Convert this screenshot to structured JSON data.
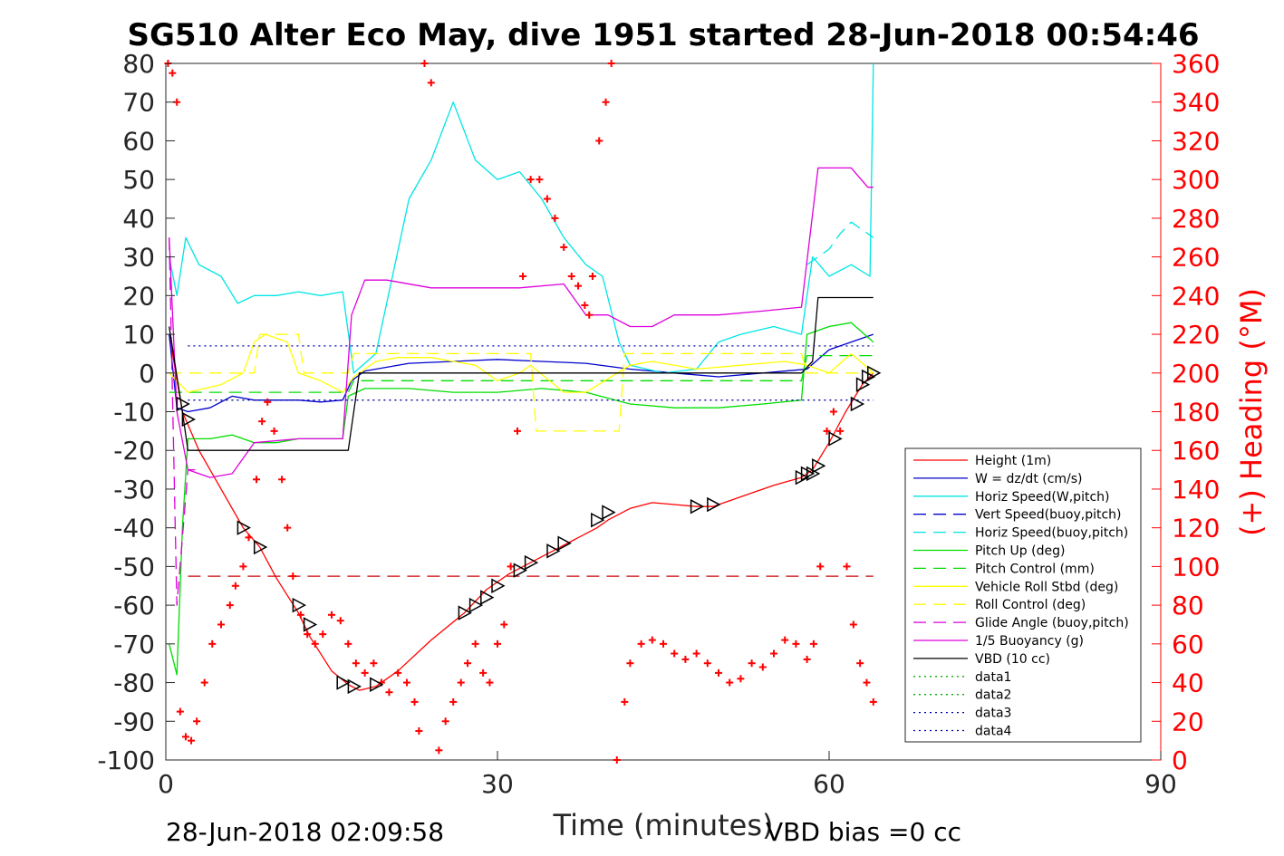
{
  "chart_data": {
    "type": "line",
    "title": "SG510 Alter Eco May, dive 1951 started 28-Jun-2018 00:54:46",
    "xlabel": "Time (minutes)",
    "ylabel_right": "(+) Heading (°M)",
    "xlim": [
      0,
      90
    ],
    "ylim_left": [
      -100,
      80
    ],
    "ylim_right": [
      0,
      360
    ],
    "x_ticks": [
      "0",
      "30",
      "60",
      "90"
    ],
    "y_ticks_left": [
      "80",
      "70",
      "60",
      "50",
      "40",
      "30",
      "20",
      "10",
      "0",
      "-10",
      "-20",
      "-30",
      "-40",
      "-50",
      "-60",
      "-70",
      "-80",
      "-90",
      "-100"
    ],
    "y_ticks_right": [
      "360",
      "340",
      "320",
      "300",
      "280",
      "260",
      "240",
      "220",
      "200",
      "180",
      "160",
      "140",
      "120",
      "100",
      "80",
      "60",
      "40",
      "20",
      "0"
    ],
    "footer_left": "28-Jun-2018 02:09:58",
    "footer_right": "VBD bias =0 cc",
    "legend_position": "lower-right",
    "series": [
      {
        "name": "Height (1m)",
        "color": "#ff0000",
        "style": "solid",
        "x": [
          0.3,
          1.5,
          3,
          5,
          7,
          8.5,
          10,
          12,
          13,
          15,
          16.5,
          17.5,
          19,
          21,
          24,
          27,
          29,
          31,
          33,
          35,
          37,
          39,
          40,
          42,
          44,
          46,
          48,
          49.5,
          52,
          55,
          57.5,
          58.5,
          60,
          61.5,
          63,
          64
        ],
        "y": [
          10,
          -10,
          -20,
          -30,
          -40,
          -45,
          -53,
          -62,
          -68,
          -77,
          -80.5,
          -82,
          -81,
          -77,
          -69,
          -62,
          -56,
          -52,
          -49,
          -46,
          -43,
          -40,
          -38,
          -35,
          -33.5,
          -34,
          -34.5,
          -34.5,
          -32,
          -29,
          -27,
          -25,
          -18,
          -10,
          -3,
          0
        ]
      },
      {
        "name": "W = dz/dt (cm/s)",
        "color": "#0000cc",
        "style": "solid",
        "x": [
          0.3,
          1,
          2,
          4,
          6,
          8,
          10,
          12,
          14,
          16,
          16.8,
          18,
          22,
          26,
          30,
          34,
          38,
          42,
          46,
          50,
          54,
          58,
          60,
          62,
          64
        ],
        "y": [
          10,
          -9,
          -10,
          -9,
          -6,
          -7,
          -7,
          -7,
          -7.5,
          -7,
          -2,
          0.5,
          2.5,
          3,
          3.5,
          3,
          2.5,
          1,
          0,
          -1,
          0,
          1,
          6,
          8,
          10
        ]
      },
      {
        "name": "Horiz Speed(W,pitch)",
        "color": "#00e5e5",
        "style": "solid",
        "x": [
          0.3,
          1,
          1.8,
          3,
          5,
          6.5,
          8,
          10,
          12,
          14,
          16,
          17,
          19,
          20.5,
          22,
          24,
          26,
          28,
          30,
          32,
          34,
          36,
          38,
          39.5,
          41,
          42,
          45,
          48,
          50,
          52,
          55,
          57.5,
          58.5,
          60,
          62,
          63.7,
          64
        ],
        "y": [
          30,
          20,
          35,
          28,
          25,
          18,
          20,
          20,
          21,
          20,
          21,
          0,
          5,
          25,
          45,
          55,
          70,
          55,
          50,
          52,
          45,
          35,
          28,
          25,
          8,
          2,
          0,
          1,
          8,
          10,
          12,
          10,
          30,
          25,
          28,
          25,
          80
        ]
      },
      {
        "name": "Vert Speed(buoy,pitch)",
        "color": "#0000cc",
        "style": "dashed",
        "x": [],
        "y": []
      },
      {
        "name": "Horiz Speed(buoy,pitch)",
        "color": "#00e5e5",
        "style": "dashed",
        "x": [
          58,
          59,
          60,
          61,
          62,
          63,
          64
        ],
        "y": [
          28,
          30,
          32,
          36,
          39,
          37,
          35
        ]
      },
      {
        "name": "Pitch Up (deg)",
        "color": "#00dd00",
        "style": "solid",
        "x": [
          0.3,
          1,
          1.5,
          2,
          4,
          6,
          8,
          10,
          12,
          14,
          16,
          16.5,
          18,
          22,
          26,
          30,
          34,
          38,
          42,
          46,
          50,
          54,
          57.5,
          58,
          60,
          62,
          64
        ],
        "y": [
          -70,
          -78,
          -40,
          -17,
          -17,
          -16,
          -18,
          -18,
          -17,
          -17,
          -17,
          -6,
          -4,
          -4,
          -5,
          -5,
          -4,
          -5,
          -8,
          -9,
          -9,
          -8,
          -7,
          10,
          12,
          13,
          8
        ]
      },
      {
        "name": "Pitch Control (mm)",
        "color": "#00dd00",
        "style": "dashed",
        "x": [
          0.3,
          16.5,
          17,
          57.5,
          58,
          64
        ],
        "y": [
          -5,
          -5,
          -2,
          -2,
          4.5,
          4.5
        ]
      },
      {
        "name": "Vehicle Roll Stbd (deg)",
        "color": "#ffff00",
        "style": "solid",
        "x": [
          0.3,
          2,
          5,
          7,
          8,
          9,
          11,
          12,
          14,
          16,
          17,
          19,
          21,
          24,
          28,
          30,
          32,
          33,
          36,
          38,
          42,
          44,
          48,
          52,
          56,
          58,
          60,
          62,
          64
        ],
        "y": [
          0,
          -5,
          -3,
          0,
          8,
          10,
          8,
          0,
          -2,
          -5,
          -1,
          3,
          4,
          4,
          2,
          -2,
          0,
          2,
          -5,
          -5,
          2,
          3,
          1,
          2,
          3,
          2,
          0,
          5,
          0
        ]
      },
      {
        "name": "Roll Control (deg)",
        "color": "#ffff00",
        "style": "dashed",
        "x": [
          0.3,
          8,
          8.5,
          12,
          12.5,
          16.5,
          17,
          33,
          33.5,
          41,
          41.5,
          57.5,
          58,
          64
        ],
        "y": [
          0,
          0,
          10,
          10,
          0,
          0,
          5,
          5,
          -15,
          -15,
          5,
          5,
          0,
          0
        ]
      },
      {
        "name": "Glide Angle (buoy,pitch)",
        "color": "#dd00dd",
        "style": "dashed",
        "x": [
          0.3,
          1,
          2,
          3
        ],
        "y": [
          35,
          -60,
          -25,
          -25
        ]
      },
      {
        "name": "1/5 Buoyancy (g)",
        "color": "#dd00dd",
        "style": "solid",
        "x": [
          0.3,
          1,
          2,
          4,
          6,
          8,
          12,
          16,
          16.8,
          18,
          20,
          24,
          28,
          32,
          36,
          38,
          40,
          42,
          44,
          46,
          50,
          54,
          57.5,
          59,
          62,
          63.5,
          64
        ],
        "y": [
          35,
          -10,
          -25,
          -27,
          -26,
          -18,
          -17,
          -17,
          15,
          24,
          24,
          22,
          22,
          22,
          23,
          15,
          15,
          12,
          12,
          15,
          15,
          16,
          17,
          53,
          53,
          48,
          48
        ]
      },
      {
        "name": "VBD (10 cc)",
        "color": "#000000",
        "style": "solid",
        "x": [
          0.3,
          1.5,
          2,
          16.5,
          17.5,
          57.5,
          58.5,
          59,
          64
        ],
        "y": [
          12,
          -10,
          -20,
          -20,
          0,
          0,
          3,
          19.5,
          19.5
        ]
      },
      {
        "name": "data1",
        "color": "#00aa00",
        "style": "dotted",
        "x": [],
        "y": []
      },
      {
        "name": "data2",
        "color": "#00aa00",
        "style": "dotted",
        "x": [],
        "y": []
      },
      {
        "name": "data3",
        "color": "#0000aa",
        "style": "dotted",
        "x": [
          2,
          64
        ],
        "y": [
          7,
          7
        ]
      },
      {
        "name": "data4",
        "color": "#0000aa",
        "style": "dotted",
        "x": [
          2,
          64
        ],
        "y": [
          -7,
          -7
        ]
      }
    ],
    "reference_lines": [
      {
        "color": "#cc0000",
        "style": "dashed",
        "x": [
          2,
          64
        ],
        "y": [
          -52.5,
          -52.5
        ]
      }
    ],
    "heading": {
      "color": "#ff0000",
      "marker": "+",
      "axis": "right",
      "x": [
        0.2,
        0.6,
        1,
        1.3,
        1.8,
        2.3,
        2.8,
        3.5,
        4.2,
        5,
        5.8,
        6.3,
        7,
        7.5,
        8.2,
        8.7,
        9.2,
        9.8,
        10.5,
        11,
        11.5,
        12.2,
        12.8,
        13.5,
        14.2,
        15,
        15.8,
        16.5,
        17.2,
        18,
        18.8,
        19.5,
        20.2,
        21,
        21.8,
        22.5,
        22.9,
        23.4,
        24,
        24.7,
        25.3,
        26,
        26.7,
        27.3,
        28,
        28.7,
        29.3,
        30,
        30.6,
        31.2,
        31.8,
        32.3,
        33,
        33.8,
        34.5,
        35.2,
        36,
        36.7,
        37.3,
        37.9,
        38.3,
        38.6,
        39.2,
        39.8,
        40.3,
        40.8,
        41.5,
        42,
        43,
        44,
        45,
        46,
        47,
        48,
        49,
        50,
        51,
        52,
        53,
        54,
        55,
        56,
        57,
        58,
        58.6,
        59.2,
        59.8,
        60.4,
        61,
        61.6,
        62.2,
        62.8,
        63.4,
        64
      ],
      "y": [
        360,
        355,
        340,
        25,
        12,
        10,
        20,
        40,
        60,
        70,
        80,
        90,
        100,
        115,
        145,
        175,
        185,
        170,
        145,
        120,
        95,
        75,
        65,
        60,
        65,
        75,
        72,
        60,
        50,
        45,
        50,
        40,
        35,
        45,
        40,
        30,
        15,
        360,
        350,
        5,
        20,
        30,
        40,
        50,
        60,
        45,
        40,
        60,
        70,
        100,
        170,
        250,
        300,
        300,
        290,
        280,
        265,
        250,
        245,
        235,
        230,
        250,
        320,
        340,
        370,
        0,
        30,
        50,
        60,
        62,
        60,
        55,
        52,
        55,
        50,
        45,
        40,
        42,
        50,
        48,
        55,
        62,
        60,
        52,
        60,
        100,
        170,
        180,
        170,
        100,
        70,
        50,
        40,
        30
      ]
    },
    "turn_markers": {
      "color": "#000000",
      "marker": "triangle",
      "x": [
        1.5,
        2,
        7,
        8.5,
        12,
        13,
        16,
        17,
        19,
        27,
        28,
        29,
        30,
        32,
        33,
        35,
        36,
        39,
        40,
        48,
        49.5,
        57.5,
        58,
        58.5,
        59,
        60.5,
        62.5,
        63,
        63.5,
        64
      ],
      "y": [
        -8,
        -12,
        -40,
        -45,
        -60,
        -65,
        -80,
        -81,
        -80.5,
        -62,
        -60,
        -58,
        -55,
        -51,
        -49,
        -46,
        -44,
        -38,
        -36,
        -34.5,
        -34,
        -27,
        -26,
        -26,
        -24,
        -17,
        -8,
        -3,
        -1,
        0
      ]
    }
  }
}
